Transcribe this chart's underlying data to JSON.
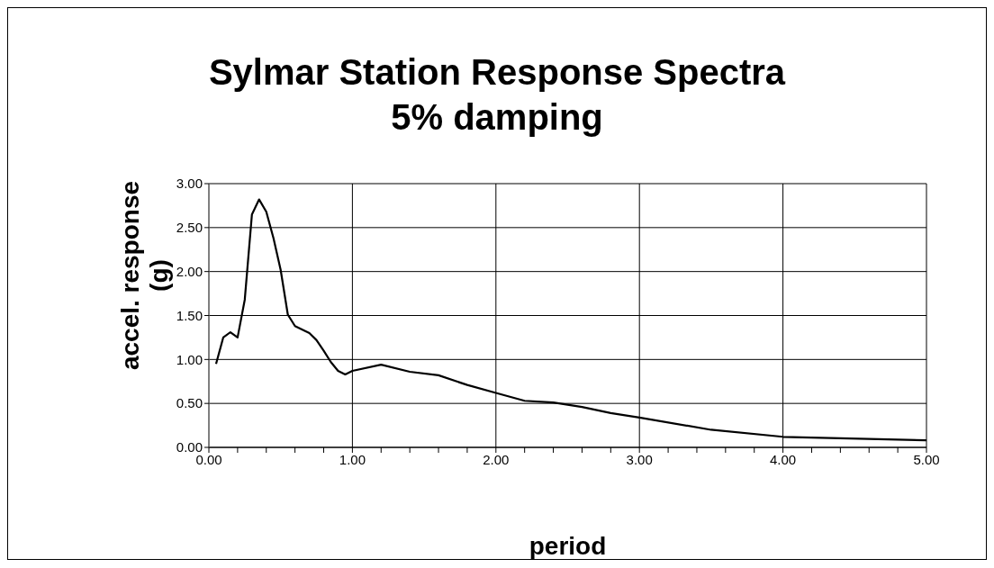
{
  "chart_data": {
    "type": "line",
    "title": "Sylmar Station Response Spectra\n5% damping",
    "xlabel": "period",
    "ylabel": "accel. response\n(g)",
    "x": [
      0.05,
      0.1,
      0.15,
      0.2,
      0.25,
      0.3,
      0.35,
      0.4,
      0.45,
      0.5,
      0.55,
      0.6,
      0.7,
      0.75,
      0.8,
      0.85,
      0.9,
      0.95,
      1.0,
      1.2,
      1.4,
      1.6,
      1.8,
      2.0,
      2.2,
      2.4,
      2.6,
      2.8,
      3.0,
      3.5,
      4.0,
      5.0
    ],
    "series": [
      {
        "color": "#000000",
        "values": [
          0.95,
          1.25,
          1.31,
          1.25,
          1.68,
          2.65,
          2.82,
          2.68,
          2.38,
          2.02,
          1.51,
          1.38,
          1.3,
          1.22,
          1.1,
          0.97,
          0.87,
          0.83,
          0.87,
          0.94,
          0.86,
          0.82,
          0.71,
          0.62,
          0.53,
          0.51,
          0.46,
          0.39,
          0.34,
          0.2,
          0.12,
          0.08
        ]
      }
    ],
    "xlim": [
      0,
      5
    ],
    "ylim": [
      0,
      3
    ],
    "xticks": [
      {
        "value": 0,
        "label": "0.00"
      },
      {
        "value": 0.2,
        "label": null
      },
      {
        "value": 0.4,
        "label": null
      },
      {
        "value": 0.6,
        "label": null
      },
      {
        "value": 0.8,
        "label": null
      },
      {
        "value": 1,
        "label": "1.00"
      },
      {
        "value": 1.2,
        "label": null
      },
      {
        "value": 1.4,
        "label": null
      },
      {
        "value": 1.6,
        "label": null
      },
      {
        "value": 1.8,
        "label": null
      },
      {
        "value": 2,
        "label": "2.00"
      },
      {
        "value": 2.2,
        "label": null
      },
      {
        "value": 2.4,
        "label": null
      },
      {
        "value": 2.6,
        "label": null
      },
      {
        "value": 2.8,
        "label": null
      },
      {
        "value": 3,
        "label": "3.00"
      },
      {
        "value": 3.2,
        "label": null
      },
      {
        "value": 3.4,
        "label": null
      },
      {
        "value": 3.6,
        "label": null
      },
      {
        "value": 3.8,
        "label": null
      },
      {
        "value": 4,
        "label": "4.00"
      },
      {
        "value": 4.2,
        "label": null
      },
      {
        "value": 4.4,
        "label": null
      },
      {
        "value": 4.6,
        "label": null
      },
      {
        "value": 4.8,
        "label": null
      },
      {
        "value": 5,
        "label": "5.00"
      }
    ],
    "yticks": [
      {
        "value": 0,
        "label": "0.00"
      },
      {
        "value": 0.5,
        "label": "0.50"
      },
      {
        "value": 1,
        "label": "1.00"
      },
      {
        "value": 1.5,
        "label": "1.50"
      },
      {
        "value": 2,
        "label": "2.00"
      },
      {
        "value": 2.5,
        "label": "2.50"
      },
      {
        "value": 3,
        "label": "3.00"
      }
    ],
    "grid": true,
    "marker": "none",
    "line_style": "solid"
  }
}
